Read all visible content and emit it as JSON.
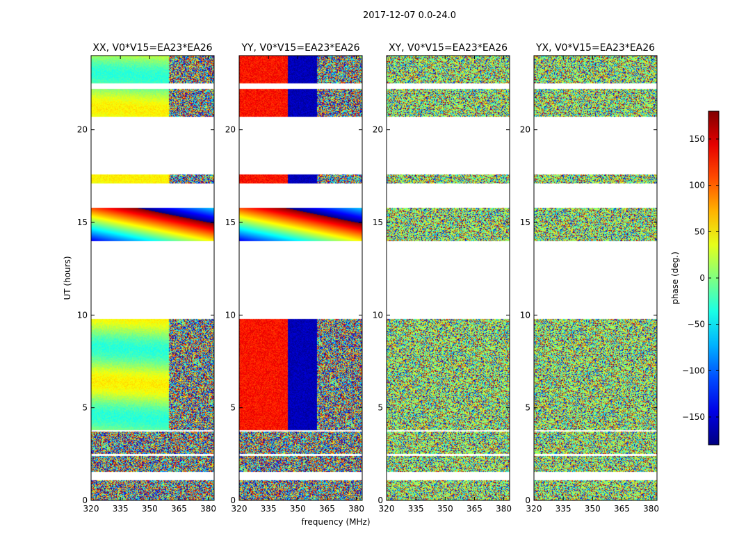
{
  "chart_data": {
    "type": "heatmap",
    "suptitle": "2017-12-07 0.0-24.0",
    "xlabel": "frequency (MHz)",
    "ylabel": "UT (hours)",
    "xlim": [
      320,
      383
    ],
    "ylim": [
      0,
      24
    ],
    "xticks": [
      320,
      335,
      350,
      365,
      380
    ],
    "yticks": [
      0,
      5,
      10,
      15,
      20
    ],
    "panels": [
      {
        "title": "XX, V0*V15=EA23*EA26",
        "pol": "XX"
      },
      {
        "title": "YY, V0*V15=EA23*EA26",
        "pol": "YY"
      },
      {
        "title": "XY, V0*V15=EA23*EA26",
        "pol": "XY"
      },
      {
        "title": "YX, V0*V15=EA23*EA26",
        "pol": "YX"
      }
    ],
    "data_ut_ranges": [
      [
        0,
        1.1
      ],
      [
        1.55,
        2.4
      ],
      [
        2.5,
        3.7
      ],
      [
        3.8,
        9.8
      ],
      [
        14.0,
        15.8
      ],
      [
        17.1,
        17.6
      ],
      [
        20.7,
        22.2
      ],
      [
        22.5,
        24.0
      ]
    ],
    "colorbar": {
      "label": "phase (deg.)",
      "range": [
        -180,
        180
      ],
      "ticks": [
        -150,
        -100,
        -50,
        0,
        50,
        100,
        150
      ],
      "tick_labels": [
        "−150",
        "−100",
        "−50",
        "0",
        "50",
        "100",
        "150"
      ],
      "colormap": "jet"
    }
  }
}
